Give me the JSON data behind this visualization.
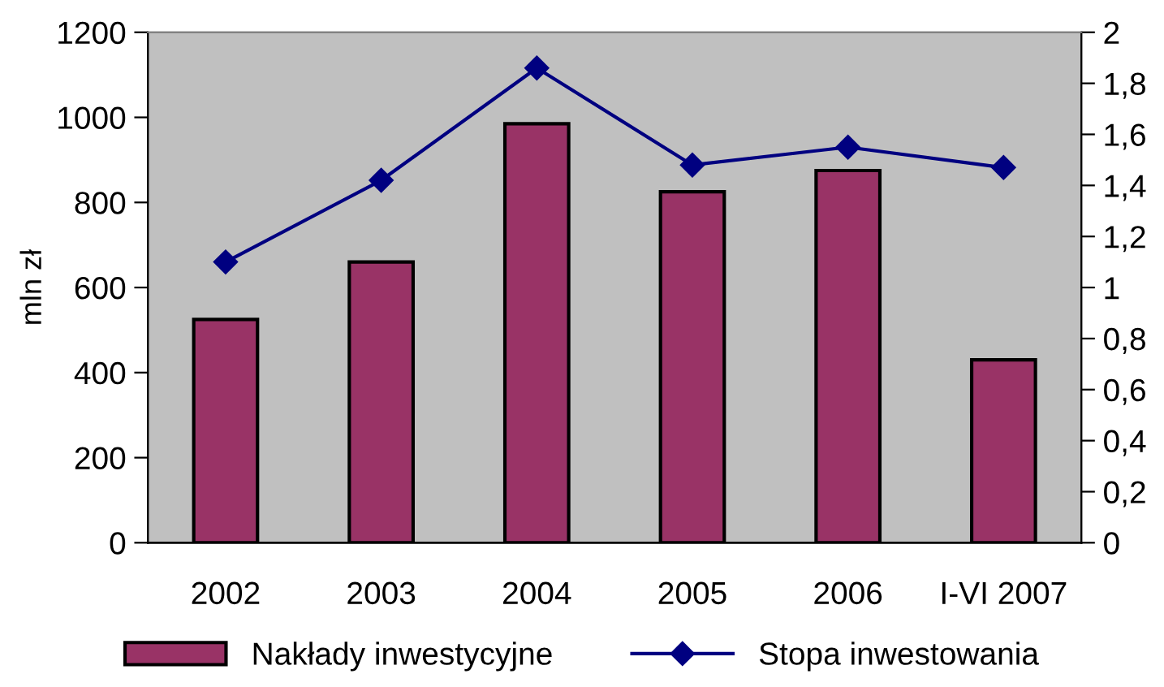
{
  "chart_data": {
    "type": "bar",
    "categories": [
      "2002",
      "2003",
      "2004",
      "2005",
      "2006",
      "I-VI 2007"
    ],
    "ylabel": "mln zł",
    "ylim": [
      0,
      1200
    ],
    "yticks": [
      0,
      200,
      400,
      600,
      800,
      1000,
      1200
    ],
    "y2lim": [
      0,
      2
    ],
    "y2ticks": [
      0,
      {
        "value": 0.2,
        "label": "0,2"
      },
      {
        "value": 0.4,
        "label": "0,4"
      },
      {
        "value": 0.6,
        "label": "0,6"
      },
      {
        "value": 0.8,
        "label": "0,8"
      },
      1,
      {
        "value": 1.2,
        "label": "1,2"
      },
      {
        "value": 1.4,
        "label": "1,4"
      },
      {
        "value": 1.6,
        "label": "1,6"
      },
      {
        "value": 1.8,
        "label": "1,8"
      },
      2
    ],
    "series": [
      {
        "name": "Nakłady inwestycyjne",
        "color": "#993366",
        "values": [
          525,
          660,
          985,
          825,
          875,
          430
        ]
      },
      {
        "name": "Stopa inwestowania",
        "type": "line",
        "axis": "y2",
        "color": "#000080",
        "values": [
          1.1,
          1.42,
          1.86,
          1.48,
          1.55,
          1.47
        ]
      }
    ],
    "marker": "diamond",
    "line_style": "solid",
    "legend": "bottom",
    "grid": false
  }
}
